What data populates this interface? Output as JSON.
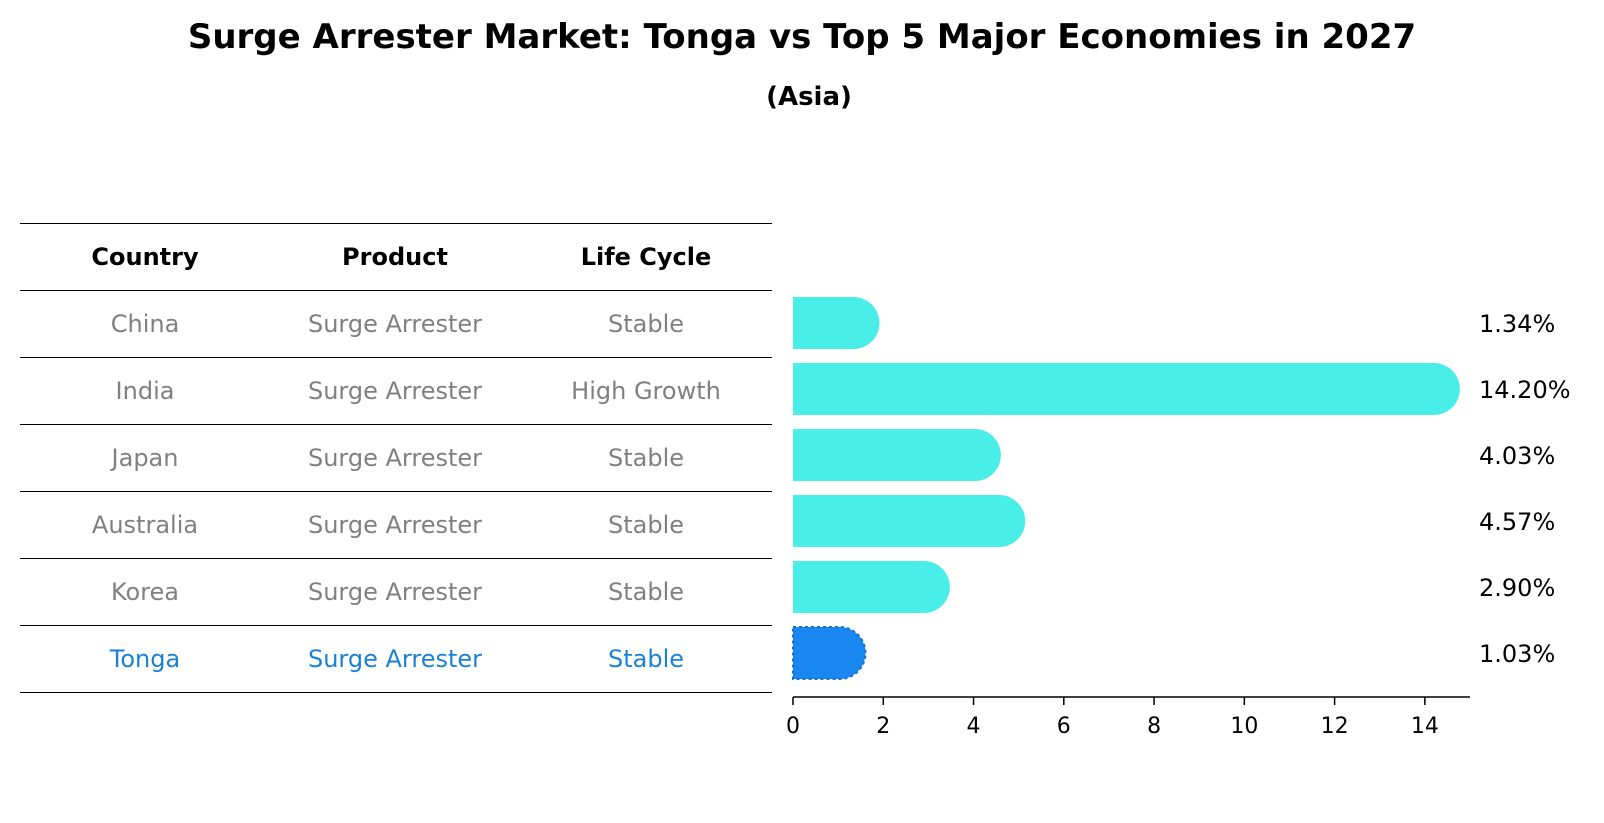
{
  "title": "Surge Arrester Market: Tonga vs Top 5 Major Economies in 2027",
  "subtitle": "(Asia)",
  "table": {
    "headers": [
      "Country",
      "Product",
      "Life Cycle"
    ],
    "rows": [
      {
        "country": "China",
        "product": "Surge Arrester",
        "life_cycle": "Stable"
      },
      {
        "country": "India",
        "product": "Surge Arrester",
        "life_cycle": "High Growth"
      },
      {
        "country": "Japan",
        "product": "Surge Arrester",
        "life_cycle": "Stable"
      },
      {
        "country": "Australia",
        "product": "Surge Arrester",
        "life_cycle": "Stable"
      },
      {
        "country": "Korea",
        "product": "Surge Arrester",
        "life_cycle": "Stable"
      },
      {
        "country": "Tonga",
        "product": "Surge Arrester",
        "life_cycle": "Stable"
      }
    ]
  },
  "colors": {
    "bar": "#4aeee8",
    "highlight_bar": "#1a86f0",
    "highlight_text": "#1a82d6",
    "muted_text": "#808080"
  },
  "chart_data": {
    "type": "bar",
    "orientation": "horizontal",
    "title": "Surge Arrester Market: Tonga vs Top 5 Major Economies in 2027",
    "subtitle": "(Asia)",
    "categories": [
      "China",
      "India",
      "Japan",
      "Australia",
      "Korea",
      "Tonga"
    ],
    "values": [
      1.34,
      14.2,
      4.03,
      4.57,
      2.9,
      1.03
    ],
    "value_labels": [
      "1.34%",
      "14.20%",
      "4.03%",
      "4.57%",
      "2.90%",
      "1.03%"
    ],
    "highlight": "Tonga",
    "xlim": [
      0,
      15
    ],
    "xticks": [
      0,
      2,
      4,
      6,
      8,
      10,
      12,
      14
    ],
    "xlabel": "",
    "ylabel": ""
  }
}
